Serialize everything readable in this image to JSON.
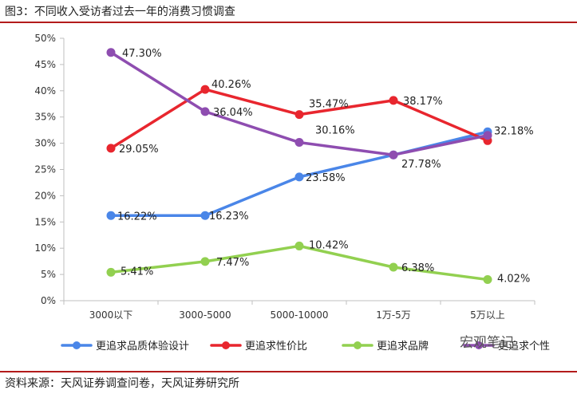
{
  "header": {
    "title": "图3：不同收入受访者过去一年的消费习惯调查"
  },
  "footer": {
    "source": "资料来源：天风证券调查问卷，天风证券研究所"
  },
  "watermark": {
    "text": "宏观笔记"
  },
  "colors": {
    "blue": "#4a86e8",
    "red": "#e8262e",
    "green": "#92d050",
    "purple": "#8e4db0",
    "axis": "#bfbfbf"
  },
  "chart_data": {
    "type": "line",
    "title": "图3：不同收入受访者过去一年的消费习惯调查",
    "categories": [
      "3000以下",
      "3000-5000",
      "5000-10000",
      "1万-5万",
      "5万以上"
    ],
    "yticks": [
      "0%",
      "5%",
      "10%",
      "15%",
      "20%",
      "25%",
      "30%",
      "35%",
      "40%",
      "45%",
      "50%"
    ],
    "ylim": [
      0,
      50
    ],
    "legend_position": "bottom",
    "series": [
      {
        "name": "更追求品质体验设计",
        "color": "#4a86e8",
        "values": [
          16.22,
          16.23,
          23.58,
          27.78,
          32.18
        ],
        "labels": [
          "16.22%",
          "16.23%",
          "23.58%",
          "",
          "32.18%"
        ]
      },
      {
        "name": "更追求性价比",
        "color": "#e8262e",
        "values": [
          29.05,
          40.26,
          35.47,
          38.17,
          30.5
        ],
        "labels": [
          "29.05%",
          "40.26%",
          "35.47%",
          "38.17%",
          ""
        ]
      },
      {
        "name": "更追求品牌",
        "color": "#92d050",
        "values": [
          5.41,
          7.47,
          10.42,
          6.38,
          4.02
        ],
        "labels": [
          "5.41%",
          "7.47%",
          "10.42%",
          "6.38%",
          "4.02%"
        ]
      },
      {
        "name": "更追求个性",
        "color": "#8e4db0",
        "values": [
          47.3,
          36.04,
          30.16,
          27.78,
          31.5
        ],
        "labels": [
          "47.30%",
          "36.04%",
          "30.16%",
          "27.78%",
          ""
        ]
      }
    ]
  }
}
